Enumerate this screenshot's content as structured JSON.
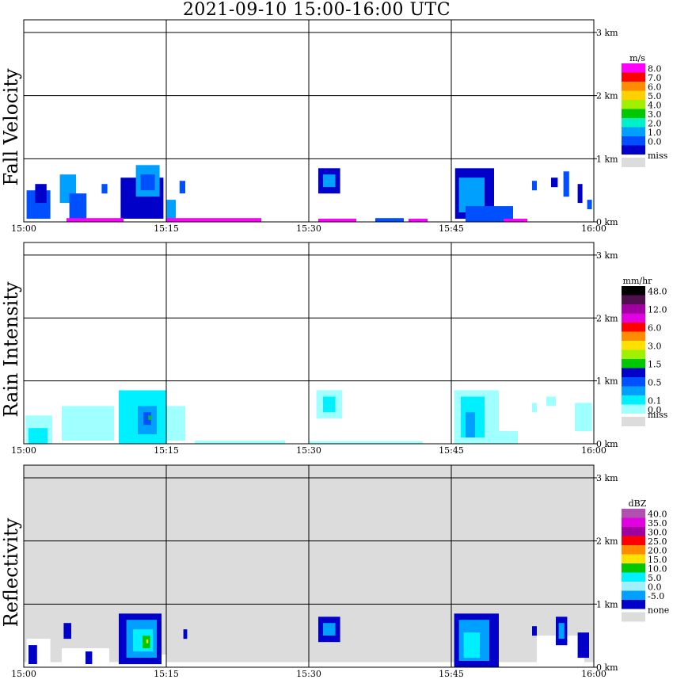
{
  "chart_data": {
    "type": "heatmap",
    "title": "2021-09-10   15:00-16:00 UTC",
    "x": {
      "tick_labels": [
        "15:00",
        "15:15",
        "15:30",
        "15:45",
        "16:00"
      ],
      "range_minutes": [
        0,
        60
      ]
    },
    "y": {
      "tick_labels": [
        "0 km",
        "1 km",
        "2 km",
        "3 km"
      ],
      "range_km": [
        0,
        3.2
      ]
    },
    "grid": true,
    "panels": [
      {
        "ylabel": "Fall Velocity",
        "unit": "m/s",
        "background": "#ffffff",
        "legend": [
          {
            "label": "8.0",
            "color": "#ff00ff"
          },
          {
            "label": "7.0",
            "color": "#ff0000"
          },
          {
            "label": "6.0",
            "color": "#ff8c00"
          },
          {
            "label": "5.0",
            "color": "#ffd000"
          },
          {
            "label": "4.0",
            "color": "#a0f000"
          },
          {
            "label": "3.0",
            "color": "#00c800"
          },
          {
            "label": "2.0",
            "color": "#00f0c8"
          },
          {
            "label": "1.0",
            "color": "#00a0ff"
          },
          {
            "label": "0.0",
            "color": "#0050ff"
          },
          {
            "label": "",
            "color": "#0000c8"
          }
        ],
        "missing": {
          "label": "miss",
          "color": "#dcdcdc"
        },
        "echoes": [
          {
            "t0": 0.3,
            "t1": 2.8,
            "h0": 0.05,
            "h1": 0.5,
            "c": "#0050ff"
          },
          {
            "t0": 1.2,
            "t1": 2.4,
            "h0": 0.3,
            "h1": 0.6,
            "c": "#0000c8"
          },
          {
            "t0": 3.8,
            "t1": 5.5,
            "h0": 0.3,
            "h1": 0.75,
            "c": "#00a0ff"
          },
          {
            "t0": 4.8,
            "t1": 6.6,
            "h0": 0.05,
            "h1": 0.45,
            "c": "#0050ff"
          },
          {
            "t0": 8.2,
            "t1": 8.8,
            "h0": 0.45,
            "h1": 0.6,
            "c": "#0050ff"
          },
          {
            "t0": 10.2,
            "t1": 14.7,
            "h0": 0.05,
            "h1": 0.7,
            "c": "#0000c8"
          },
          {
            "t0": 11.8,
            "t1": 14.3,
            "h0": 0.4,
            "h1": 0.9,
            "c": "#00a0ff"
          },
          {
            "t0": 12.3,
            "t1": 13.8,
            "h0": 0.5,
            "h1": 0.75,
            "c": "#0050ff"
          },
          {
            "t0": 15.0,
            "t1": 16.0,
            "h0": 0.05,
            "h1": 0.35,
            "c": "#00a0ff"
          },
          {
            "t0": 16.4,
            "t1": 17.0,
            "h0": 0.45,
            "h1": 0.65,
            "c": "#0050ff"
          },
          {
            "t0": 4.5,
            "t1": 10.5,
            "h0": 0.0,
            "h1": 0.06,
            "c": "#ff00ff"
          },
          {
            "t0": 15.0,
            "t1": 25.0,
            "h0": 0.0,
            "h1": 0.06,
            "c": "#ff00ff"
          },
          {
            "t0": 31.0,
            "t1": 33.3,
            "h0": 0.45,
            "h1": 0.85,
            "c": "#0000c8"
          },
          {
            "t0": 31.5,
            "t1": 32.8,
            "h0": 0.55,
            "h1": 0.75,
            "c": "#00a0ff"
          },
          {
            "t0": 31.0,
            "t1": 35.0,
            "h0": 0.0,
            "h1": 0.05,
            "c": "#ff00ff"
          },
          {
            "t0": 40.5,
            "t1": 42.5,
            "h0": 0.0,
            "h1": 0.05,
            "c": "#ff00ff"
          },
          {
            "t0": 37.0,
            "t1": 40.0,
            "h0": 0.0,
            "h1": 0.06,
            "c": "#0050ff"
          },
          {
            "t0": 45.4,
            "t1": 49.5,
            "h0": 0.05,
            "h1": 0.85,
            "c": "#0000c8"
          },
          {
            "t0": 45.8,
            "t1": 48.5,
            "h0": 0.15,
            "h1": 0.7,
            "c": "#00a0ff"
          },
          {
            "t0": 46.5,
            "t1": 51.5,
            "h0": 0.0,
            "h1": 0.25,
            "c": "#0050ff"
          },
          {
            "t0": 50.5,
            "t1": 53.0,
            "h0": 0.0,
            "h1": 0.05,
            "c": "#ff00ff"
          },
          {
            "t0": 53.5,
            "t1": 54.0,
            "h0": 0.5,
            "h1": 0.65,
            "c": "#0050ff"
          },
          {
            "t0": 55.5,
            "t1": 56.2,
            "h0": 0.55,
            "h1": 0.7,
            "c": "#0000c8"
          },
          {
            "t0": 56.8,
            "t1": 57.4,
            "h0": 0.4,
            "h1": 0.8,
            "c": "#0050ff"
          },
          {
            "t0": 58.3,
            "t1": 58.8,
            "h0": 0.3,
            "h1": 0.6,
            "c": "#0000c8"
          },
          {
            "t0": 59.3,
            "t1": 59.8,
            "h0": 0.2,
            "h1": 0.35,
            "c": "#0050ff"
          }
        ]
      },
      {
        "ylabel": "Rain Intensity",
        "unit": "mm/hr",
        "background": "#ffffff",
        "legend": [
          {
            "label": "48.0",
            "color": "#000000"
          },
          {
            "label": "",
            "color": "#501050"
          },
          {
            "label": "12.0",
            "color": "#a000a0"
          },
          {
            "label": "",
            "color": "#e000e0"
          },
          {
            "label": "6.0",
            "color": "#ff0000"
          },
          {
            "label": "",
            "color": "#ff8c00"
          },
          {
            "label": "3.0",
            "color": "#ffe000"
          },
          {
            "label": "",
            "color": "#a0f000"
          },
          {
            "label": "1.5",
            "color": "#00c800"
          },
          {
            "label": "",
            "color": "#0000c8"
          },
          {
            "label": "0.5",
            "color": "#0050ff"
          },
          {
            "label": "",
            "color": "#00a0ff"
          },
          {
            "label": "0.1",
            "color": "#00f0ff"
          },
          {
            "label": "0.0",
            "color": "#a0ffff"
          }
        ],
        "missing": {
          "label": "miss",
          "color": "#dcdcdc"
        },
        "echoes": [
          {
            "t0": 0.2,
            "t1": 3.0,
            "h0": 0.0,
            "h1": 0.45,
            "c": "#a0ffff"
          },
          {
            "t0": 0.5,
            "t1": 2.5,
            "h0": 0.0,
            "h1": 0.25,
            "c": "#00f0ff"
          },
          {
            "t0": 4.0,
            "t1": 9.5,
            "h0": 0.05,
            "h1": 0.6,
            "c": "#a0ffff"
          },
          {
            "t0": 10.0,
            "t1": 15.0,
            "h0": 0.0,
            "h1": 0.85,
            "c": "#00f0ff"
          },
          {
            "t0": 12.0,
            "t1": 14.0,
            "h0": 0.15,
            "h1": 0.6,
            "c": "#00a0ff"
          },
          {
            "t0": 12.6,
            "t1": 13.4,
            "h0": 0.3,
            "h1": 0.5,
            "c": "#0050ff"
          },
          {
            "t0": 13.1,
            "t1": 13.4,
            "h0": 0.38,
            "h1": 0.45,
            "c": "#00c800"
          },
          {
            "t0": 15.0,
            "t1": 17.0,
            "h0": 0.05,
            "h1": 0.6,
            "c": "#a0ffff"
          },
          {
            "t0": 18.0,
            "t1": 27.5,
            "h0": 0.0,
            "h1": 0.05,
            "c": "#a0ffff"
          },
          {
            "t0": 30.8,
            "t1": 33.5,
            "h0": 0.4,
            "h1": 0.85,
            "c": "#a0ffff"
          },
          {
            "t0": 31.5,
            "t1": 32.8,
            "h0": 0.5,
            "h1": 0.75,
            "c": "#00f0ff"
          },
          {
            "t0": 30.0,
            "t1": 42.0,
            "h0": 0.0,
            "h1": 0.04,
            "c": "#a0ffff"
          },
          {
            "t0": 45.3,
            "t1": 50.0,
            "h0": 0.0,
            "h1": 0.85,
            "c": "#a0ffff"
          },
          {
            "t0": 46.0,
            "t1": 48.5,
            "h0": 0.1,
            "h1": 0.75,
            "c": "#00f0ff"
          },
          {
            "t0": 46.5,
            "t1": 47.5,
            "h0": 0.1,
            "h1": 0.5,
            "c": "#00a0ff"
          },
          {
            "t0": 49.0,
            "t1": 52.0,
            "h0": 0.0,
            "h1": 0.2,
            "c": "#a0ffff"
          },
          {
            "t0": 53.5,
            "t1": 54.0,
            "h0": 0.5,
            "h1": 0.65,
            "c": "#a0ffff"
          },
          {
            "t0": 55.0,
            "t1": 56.0,
            "h0": 0.6,
            "h1": 0.75,
            "c": "#a0ffff"
          },
          {
            "t0": 58.0,
            "t1": 59.8,
            "h0": 0.2,
            "h1": 0.65,
            "c": "#a0ffff"
          }
        ]
      },
      {
        "ylabel": "Reflectivity",
        "unit": "dBZ",
        "background": "#dcdcdc",
        "legend": [
          {
            "label": "40.0",
            "color": "#b050b0"
          },
          {
            "label": "35.0",
            "color": "#e000e0"
          },
          {
            "label": "30.0",
            "color": "#a000a0"
          },
          {
            "label": "25.0",
            "color": "#ff0000"
          },
          {
            "label": "20.0",
            "color": "#ff8c00"
          },
          {
            "label": "15.0",
            "color": "#ffe000"
          },
          {
            "label": "10.0",
            "color": "#00c800"
          },
          {
            "label": "5.0",
            "color": "#00f0ff"
          },
          {
            "label": "0.0",
            "color": "#a0f0ff"
          },
          {
            "label": "-5.0",
            "color": "#00a0ff"
          },
          {
            "label": "",
            "color": "#0000c8"
          }
        ],
        "missing": {
          "label": "none",
          "color": "#dcdcdc"
        },
        "echoes": [
          {
            "t0": 0.0,
            "t1": 60.0,
            "h0": 0.0,
            "h1": 0.08,
            "c": "#ffffff"
          },
          {
            "t0": 0.3,
            "t1": 2.8,
            "h0": 0.0,
            "h1": 0.45,
            "c": "#ffffff"
          },
          {
            "t0": 0.5,
            "t1": 1.4,
            "h0": 0.05,
            "h1": 0.35,
            "c": "#0000c8"
          },
          {
            "t0": 4.0,
            "t1": 9.0,
            "h0": 0.0,
            "h1": 0.3,
            "c": "#ffffff"
          },
          {
            "t0": 4.2,
            "t1": 5.0,
            "h0": 0.45,
            "h1": 0.7,
            "c": "#0000c8"
          },
          {
            "t0": 6.5,
            "t1": 7.2,
            "h0": 0.05,
            "h1": 0.25,
            "c": "#0000c8"
          },
          {
            "t0": 10.0,
            "t1": 15.0,
            "h0": 0.0,
            "h1": 0.2,
            "c": "#ffffff"
          },
          {
            "t0": 10.0,
            "t1": 14.5,
            "h0": 0.05,
            "h1": 0.85,
            "c": "#0000c8"
          },
          {
            "t0": 10.8,
            "t1": 14.0,
            "h0": 0.15,
            "h1": 0.75,
            "c": "#00a0ff"
          },
          {
            "t0": 11.5,
            "t1": 13.6,
            "h0": 0.25,
            "h1": 0.6,
            "c": "#00f0ff"
          },
          {
            "t0": 12.5,
            "t1": 13.3,
            "h0": 0.3,
            "h1": 0.5,
            "c": "#00c800"
          },
          {
            "t0": 12.9,
            "t1": 13.1,
            "h0": 0.38,
            "h1": 0.44,
            "c": "#ffe000"
          },
          {
            "t0": 16.8,
            "t1": 17.2,
            "h0": 0.45,
            "h1": 0.6,
            "c": "#0000c8"
          },
          {
            "t0": 31.0,
            "t1": 33.3,
            "h0": 0.4,
            "h1": 0.8,
            "c": "#0000c8"
          },
          {
            "t0": 31.5,
            "t1": 32.8,
            "h0": 0.5,
            "h1": 0.7,
            "c": "#00a0ff"
          },
          {
            "t0": 45.3,
            "t1": 50.0,
            "h0": 0.0,
            "h1": 0.85,
            "c": "#0000c8"
          },
          {
            "t0": 45.8,
            "t1": 49.0,
            "h0": 0.1,
            "h1": 0.75,
            "c": "#00a0ff"
          },
          {
            "t0": 46.3,
            "t1": 48.0,
            "h0": 0.15,
            "h1": 0.55,
            "c": "#00f0ff"
          },
          {
            "t0": 54.0,
            "t1": 59.0,
            "h0": 0.0,
            "h1": 0.5,
            "c": "#ffffff"
          },
          {
            "t0": 53.5,
            "t1": 54.0,
            "h0": 0.5,
            "h1": 0.65,
            "c": "#0000c8"
          },
          {
            "t0": 56.0,
            "t1": 57.2,
            "h0": 0.35,
            "h1": 0.8,
            "c": "#0000c8"
          },
          {
            "t0": 56.3,
            "t1": 56.9,
            "h0": 0.45,
            "h1": 0.7,
            "c": "#00a0ff"
          },
          {
            "t0": 58.3,
            "t1": 59.5,
            "h0": 0.15,
            "h1": 0.55,
            "c": "#0000c8"
          }
        ]
      }
    ]
  }
}
